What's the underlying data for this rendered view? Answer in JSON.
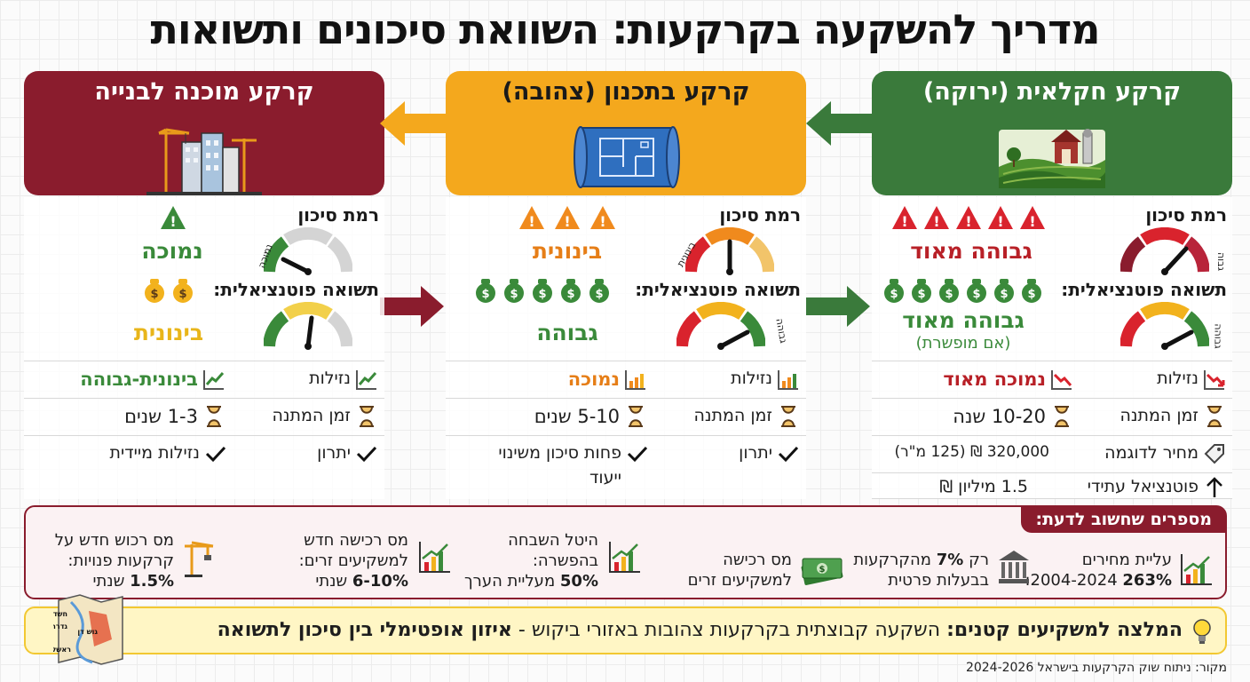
{
  "title": "מדריך להשקעה בקרקעות: השוואת סיכונים ותשואות",
  "columns": {
    "green": {
      "title": "קרקע חקלאית (ירוקה)",
      "risk_label": "רמת סיכון",
      "risk_value": "גבוהה מאוד",
      "risk_gauge_word": "גבוה",
      "return_label": "תשואה פוטנציאלית:",
      "return_value": "גבוהה מאוד",
      "return_note": "(אם מופשרת)",
      "return_gauge_word": "גבוהה",
      "liquidity_label": "נזילות",
      "liquidity_value": "נמוכה מאוד",
      "wait_label": "זמן המתנה",
      "wait_value": "10-20 שנה",
      "price_label": "מחיר לדוגמה",
      "price_value": "320,000 ₪ (125 מ\"ר)",
      "future_label": "פוטנציאל עתידי",
      "future_value": "1.5 מיליון ₪"
    },
    "yellow": {
      "title": "קרקע בתכנון (צהובה)",
      "risk_label": "רמת סיכון",
      "risk_value": "בינונית",
      "risk_gauge_word": "בינונית",
      "return_label": "תשואה פוטנציאלית:",
      "return_value": "גבוהה",
      "return_gauge_word": "גבוהה",
      "liquidity_label": "נזילות",
      "liquidity_value": "נמוכה",
      "wait_label": "זמן המתנה",
      "wait_value": "5-10 שנים",
      "advantage_label": "יתרון",
      "advantage_value_1": "פחות סיכון משינוי",
      "advantage_value_2": "ייעוד"
    },
    "red": {
      "title": "קרקע מוכנה לבנייה",
      "risk_label": "רמת סיכון",
      "risk_value": "נמוכה",
      "risk_gauge_word": "נמוכה",
      "return_label": "תשואה פוטנציאלית:",
      "return_value": "בינונית",
      "liquidity_label": "נזילות",
      "liquidity_value": "בינונית-גבוהה",
      "wait_label": "זמן המתנה",
      "wait_value": "1-3 שנים",
      "advantage_label": "יתרון",
      "advantage_value": "נזילות מיידית"
    }
  },
  "facts": {
    "tag": "מספרים שחשוב לדעת:",
    "f1_line1": "עליית מחירים",
    "f1_num": "263%",
    "f1_years": "2004-2024:",
    "f2_line1_a": "רק",
    "f2_num": "7%",
    "f2_line1_b": "מהקרקעות",
    "f2_line2": "בבעלות פרטית",
    "f3_line1": "מס רכישה",
    "f3_line2": "למשקיעים זרים",
    "f4_line1": "היטל השבחה",
    "f4_line2": "בהפשרה:",
    "f4_num": "50%",
    "f4_line3": "מעליית הערך",
    "f5_line1": "מס רכישה חדש",
    "f5_line2": "למשקיעים זרים:",
    "f5_num": "6-10%",
    "f5_unit": "שנתי",
    "f6_line1": "מס רכוש חדש על",
    "f6_line2": "קרקעות פנויות:",
    "f6_num": "1.5%",
    "f6_unit": "שנתי"
  },
  "recommendation": {
    "lead": "המלצה למשקיעים קטנים:",
    "body": " השקעה קבוצתית בקרקעות צהובות באזורי ביקוש - ",
    "emphasis": "איזון אופטימלי בין סיכון לתשואה"
  },
  "map_labels": [
    "חשדון",
    "גדרה",
    "גוש דן",
    "ראשל\"צ"
  ],
  "source": "מקור: ניתוח שוק הקרקעות בישראל 2024-2026",
  "colors": {
    "green": "#3a7a3b",
    "yellow": "#f4a81d",
    "red": "#8a1c2d",
    "danger": "#d9232d"
  }
}
